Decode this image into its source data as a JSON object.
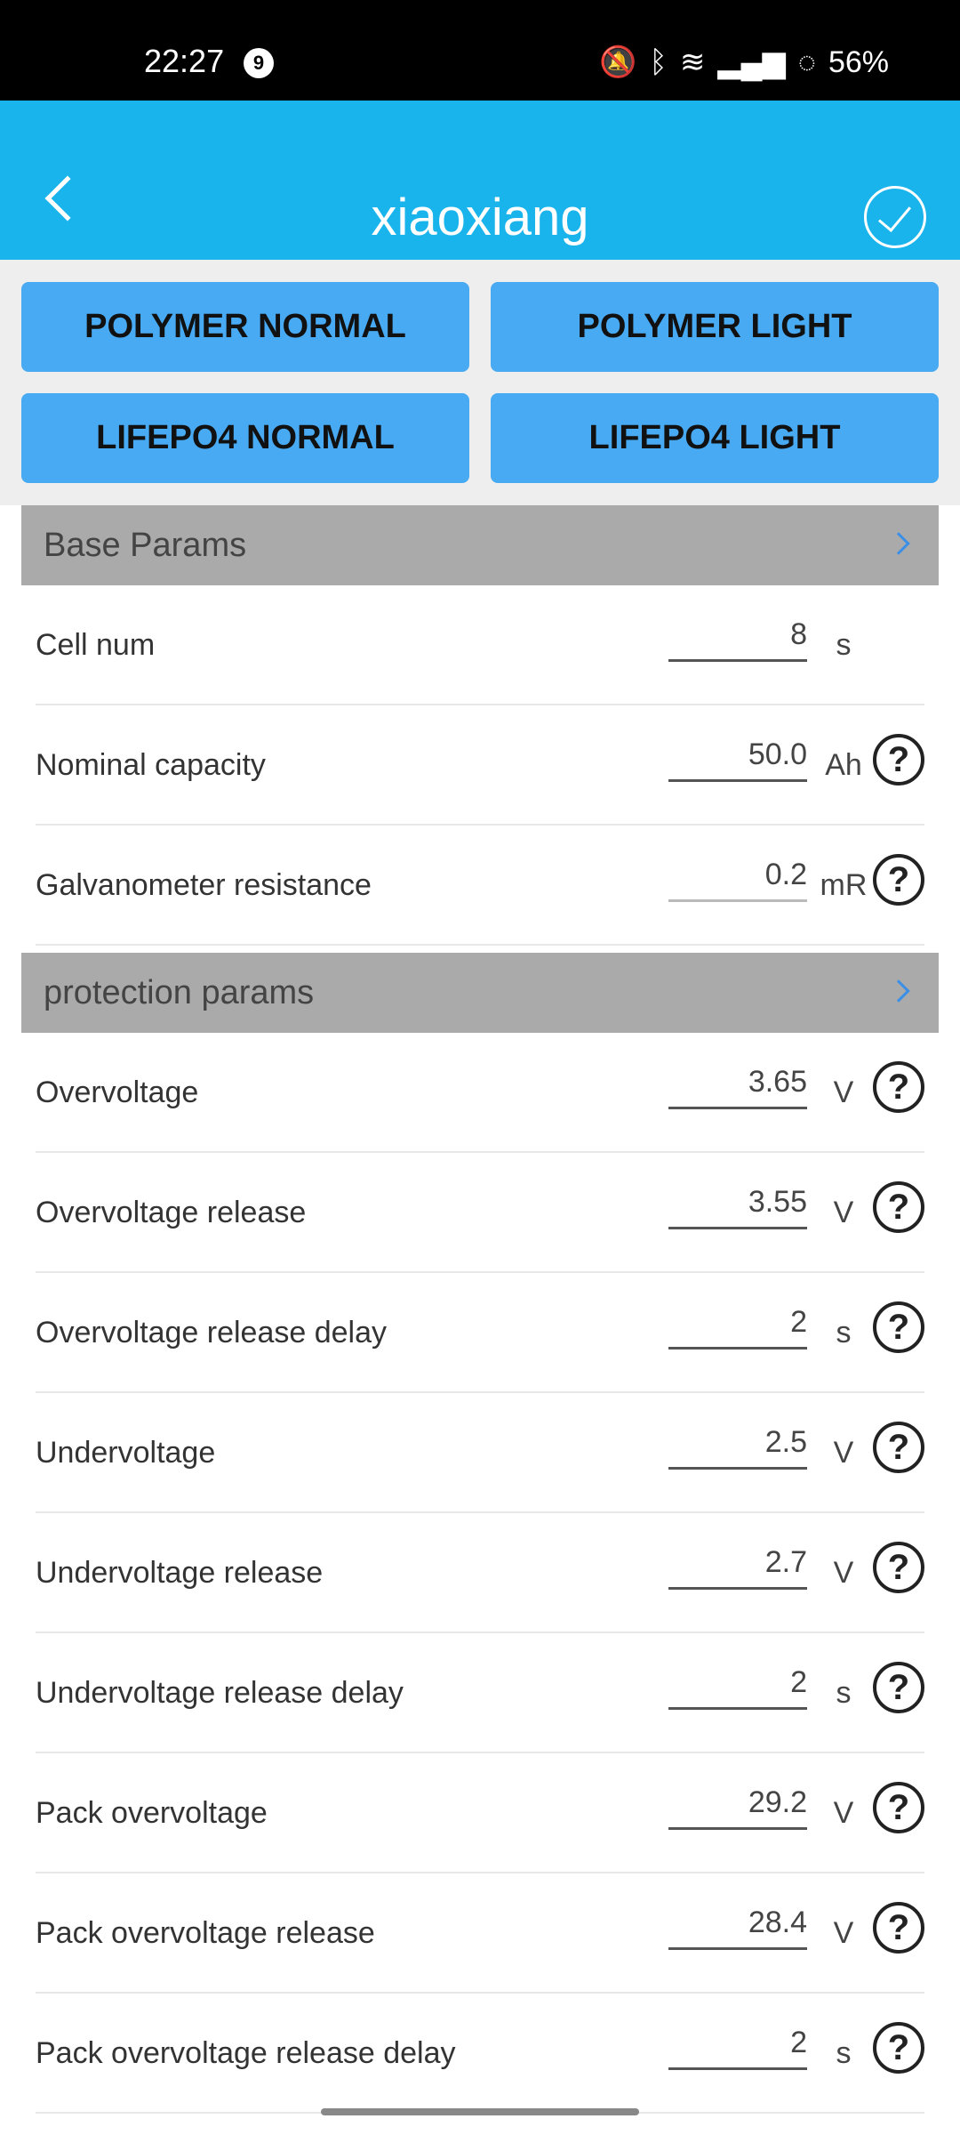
{
  "status_bar": {
    "time": "22:27",
    "notification_count": "9",
    "battery": "56%",
    "icons": [
      "mute-icon",
      "bluetooth-icon",
      "wifi-icon",
      "signal-icon",
      "battery-icon"
    ]
  },
  "header": {
    "title": "xiaoxiang",
    "back_icon": "chevron-left-icon",
    "confirm_icon": "check-circle-icon"
  },
  "presets": [
    "POLYMER NORMAL",
    "POLYMER LIGHT",
    "LIFEPO4 NORMAL",
    "LIFEPO4 LIGHT"
  ],
  "sections": [
    {
      "title": "Base Params",
      "rows": [
        {
          "label": "Cell num",
          "value": "8",
          "unit": "s",
          "help": false
        },
        {
          "label": "Nominal capacity",
          "value": "50.0",
          "unit": "Ah",
          "help": true
        },
        {
          "label": "Galvanometer resistance",
          "value": "0.2",
          "unit": "mR",
          "help": true
        }
      ]
    },
    {
      "title": "protection params",
      "rows": [
        {
          "label": "Overvoltage",
          "value": "3.65",
          "unit": "V",
          "help": true
        },
        {
          "label": "Overvoltage release",
          "value": "3.55",
          "unit": "V",
          "help": true
        },
        {
          "label": "Overvoltage release delay",
          "value": "2",
          "unit": "s",
          "help": true
        },
        {
          "label": "Undervoltage",
          "value": "2.5",
          "unit": "V",
          "help": true
        },
        {
          "label": "Undervoltage release",
          "value": "2.7",
          "unit": "V",
          "help": true
        },
        {
          "label": "Undervoltage release delay",
          "value": "2",
          "unit": "s",
          "help": true
        },
        {
          "label": "Pack overvoltage",
          "value": "29.2",
          "unit": "V",
          "help": true
        },
        {
          "label": "Pack overvoltage release",
          "value": "28.4",
          "unit": "V",
          "help": true
        },
        {
          "label": "Pack overvoltage release delay",
          "value": "2",
          "unit": "s",
          "help": true
        }
      ]
    }
  ],
  "colors": {
    "header": "#1ab4ec",
    "preset_button": "#48aaf3",
    "section_header": "#aaaaaa"
  }
}
